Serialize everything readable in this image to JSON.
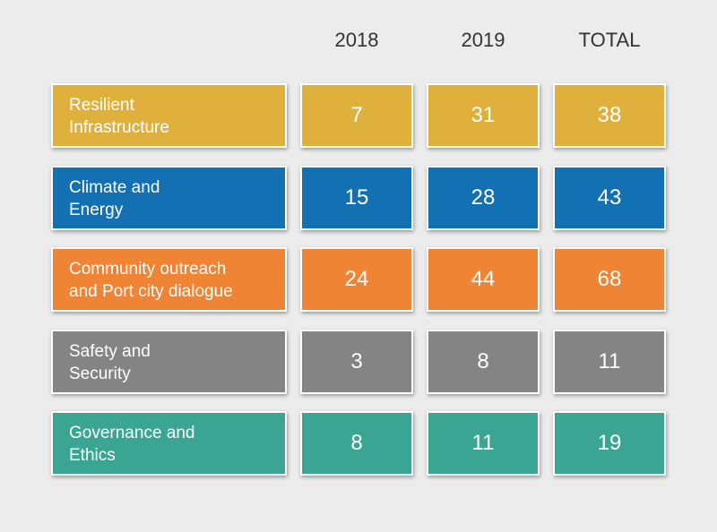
{
  "chart_data": {
    "type": "table",
    "columns": [
      "2018",
      "2019",
      "TOTAL"
    ],
    "rows": [
      {
        "label_lines": [
          "Resilient",
          "Infrastructure"
        ],
        "values": [
          7,
          31,
          38
        ],
        "color": "#e0b03c"
      },
      {
        "label_lines": [
          "Climate and",
          "Energy"
        ],
        "values": [
          15,
          28,
          43
        ],
        "color": "#1370b3"
      },
      {
        "label_lines": [
          "Community outreach",
          "and Port city dialogue"
        ],
        "values": [
          24,
          44,
          68
        ],
        "color": "#ef8435"
      },
      {
        "label_lines": [
          "Safety and",
          "Security"
        ],
        "values": [
          3,
          8,
          11
        ],
        "color": "#848484"
      },
      {
        "label_lines": [
          "Governance and",
          "Ethics"
        ],
        "values": [
          8,
          11,
          19
        ],
        "color": "#3aa592"
      }
    ]
  }
}
